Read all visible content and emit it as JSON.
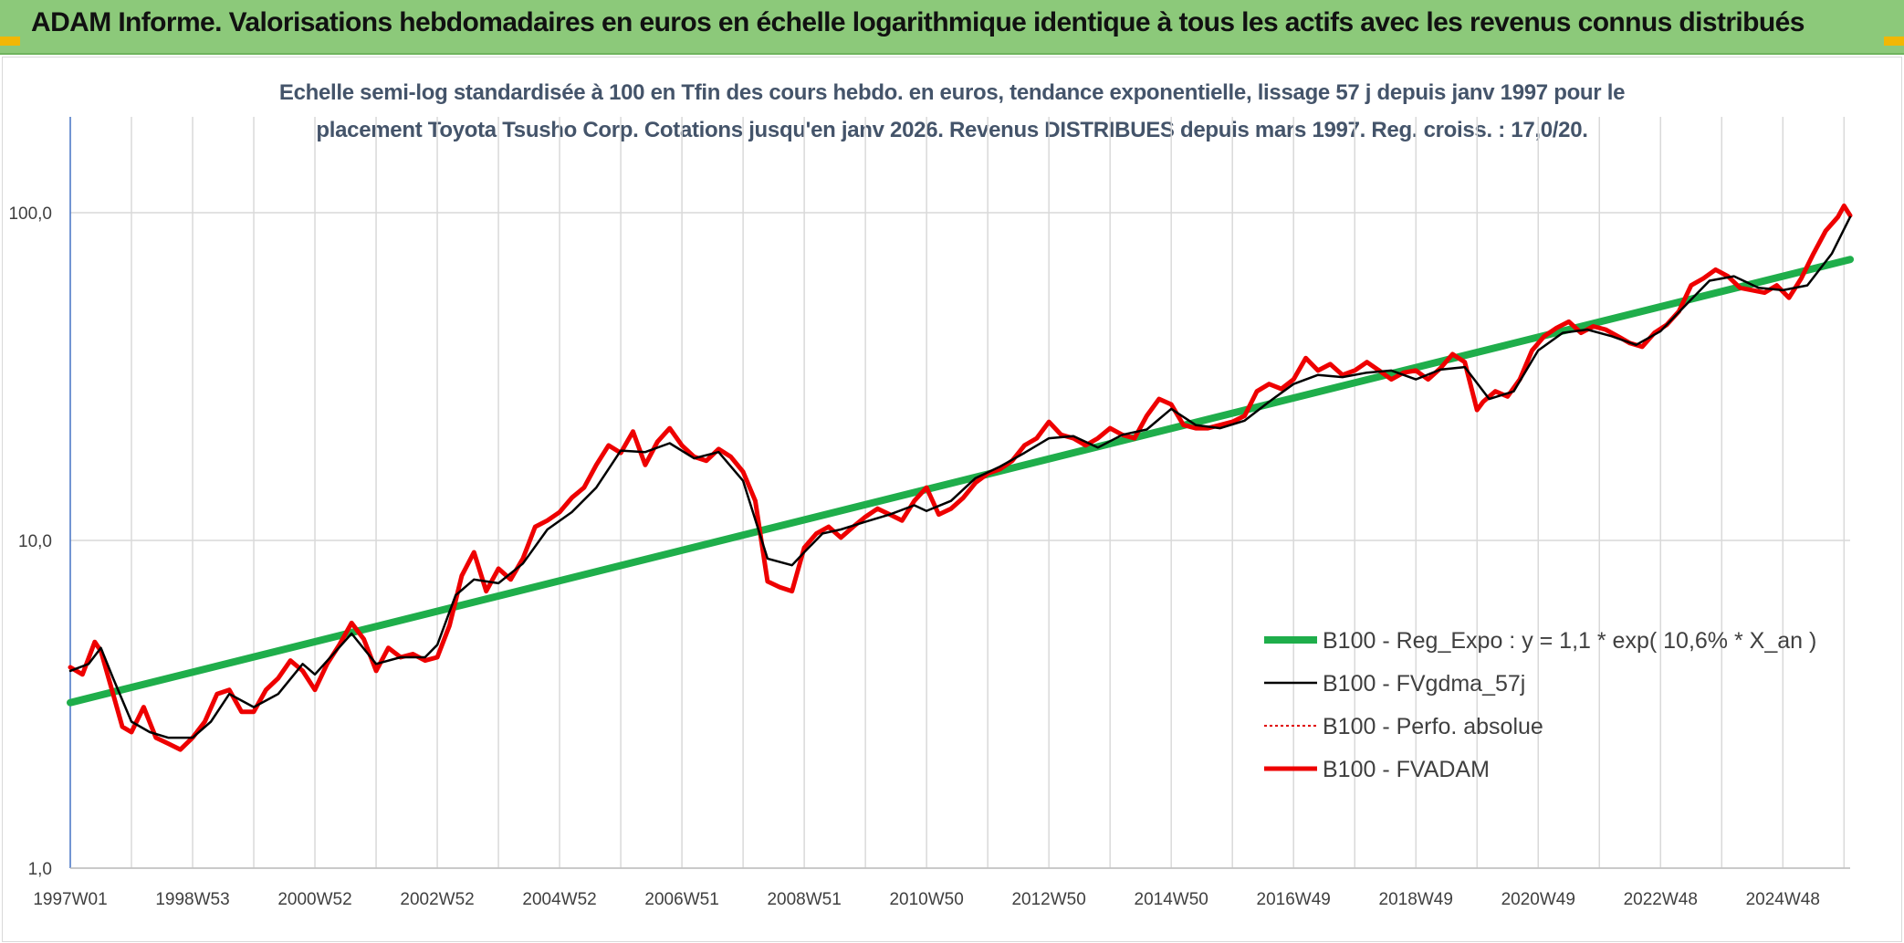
{
  "header": {
    "title": "ADAM Informe. Valorisations hebdomadaires en euros en échelle logarithmique identique à tous les actifs avec les revenus connus distribués"
  },
  "colors": {
    "header_bg": "#8cc97a",
    "regression": "#1fae4b",
    "smoothed": "#000000",
    "perf_absolue": "#e00000",
    "fvadam": "#ee0000",
    "grid": "#d9d9d9"
  },
  "chart_data": {
    "type": "line",
    "subtitle_line1": "Echelle semi-log standardisée à 100 en Tfin des cours hebdo. en euros, tendance exponentielle, lissage 57 j depuis janv 1997 pour le",
    "subtitle_line2": "placement Toyota Tsusho Corp. Cotations jusqu'en janv 2026. Revenus DISTRIBUES depuis mars 1997. Reg. croiss. : 17,0/20.",
    "y_scale": "log",
    "ylim": [
      1,
      180
    ],
    "y_ticks": [
      {
        "value": 1,
        "label": "1,0"
      },
      {
        "value": 10,
        "label": "10,0"
      },
      {
        "value": 100,
        "label": "100,0"
      }
    ],
    "xlim": [
      1997.0,
      2026.1
    ],
    "x_ticks": [
      {
        "value": 1997.0,
        "label": "1997W01"
      },
      {
        "value": 1999.0,
        "label": "1998W53"
      },
      {
        "value": 2001.0,
        "label": "2000W52"
      },
      {
        "value": 2003.0,
        "label": "2002W52"
      },
      {
        "value": 2005.0,
        "label": "2004W52"
      },
      {
        "value": 2007.0,
        "label": "2006W51"
      },
      {
        "value": 2009.0,
        "label": "2008W51"
      },
      {
        "value": 2011.0,
        "label": "2010W50"
      },
      {
        "value": 2013.0,
        "label": "2012W50"
      },
      {
        "value": 2015.0,
        "label": "2014W50"
      },
      {
        "value": 2017.0,
        "label": "2016W49"
      },
      {
        "value": 2019.0,
        "label": "2018W49"
      },
      {
        "value": 2021.0,
        "label": "2020W49"
      },
      {
        "value": 2023.0,
        "label": "2022W48"
      },
      {
        "value": 2025.0,
        "label": "2024W48"
      }
    ],
    "minor_gridlines_x": [
      1998.0,
      2000.0,
      2002.0,
      2004.0,
      2006.0,
      2008.0,
      2010.0,
      2012.0,
      2014.0,
      2016.0,
      2018.0,
      2020.0,
      2022.0,
      2024.0,
      2026.0
    ],
    "grid": true,
    "legend_position": "bottom-right",
    "series": [
      {
        "name": "B100 - Reg_Expo : y = 1,1 * exp( 10,6% *  X_an )",
        "style": "thick-green",
        "x": [
          1997.0,
          2026.1
        ],
        "y": [
          3.2,
          72.0
        ]
      },
      {
        "name": "B100 - FVgdma_57j",
        "style": "thin-black",
        "x": [
          1997.0,
          1997.3,
          1997.5,
          1997.7,
          1998.0,
          1998.3,
          1998.6,
          1999.0,
          1999.3,
          1999.6,
          2000.0,
          2000.4,
          2000.8,
          2001.0,
          2001.3,
          2001.6,
          2002.0,
          2002.4,
          2002.8,
          2003.0,
          2003.3,
          2003.6,
          2004.0,
          2004.4,
          2004.8,
          2005.2,
          2005.6,
          2006.0,
          2006.4,
          2006.8,
          2007.2,
          2007.6,
          2008.0,
          2008.4,
          2008.8,
          2009.0,
          2009.3,
          2009.6,
          2010.0,
          2010.4,
          2010.8,
          2011.0,
          2011.4,
          2011.8,
          2012.2,
          2012.6,
          2013.0,
          2013.4,
          2013.8,
          2014.2,
          2014.6,
          2015.0,
          2015.4,
          2015.8,
          2016.2,
          2016.6,
          2017.0,
          2017.4,
          2017.8,
          2018.2,
          2018.6,
          2019.0,
          2019.4,
          2019.8,
          2020.2,
          2020.6,
          2021.0,
          2021.4,
          2021.8,
          2022.2,
          2022.6,
          2023.0,
          2023.4,
          2023.8,
          2024.2,
          2024.6,
          2025.0,
          2025.4,
          2025.8,
          2026.1
        ],
        "y": [
          4.0,
          4.2,
          4.7,
          3.8,
          2.8,
          2.6,
          2.5,
          2.5,
          2.8,
          3.4,
          3.1,
          3.4,
          4.2,
          3.9,
          4.5,
          5.2,
          4.2,
          4.4,
          4.4,
          4.8,
          6.8,
          7.6,
          7.4,
          8.5,
          10.8,
          12.2,
          14.5,
          18.8,
          18.6,
          19.8,
          17.8,
          18.6,
          15.2,
          8.8,
          8.4,
          9.2,
          10.5,
          10.8,
          11.4,
          12.0,
          12.8,
          12.3,
          13.2,
          15.5,
          16.8,
          18.5,
          20.5,
          20.8,
          19.2,
          21.0,
          21.8,
          25.2,
          22.5,
          22.0,
          23.2,
          26.5,
          30.0,
          32.0,
          31.5,
          32.5,
          33.0,
          31.0,
          33.2,
          33.8,
          27.0,
          28.5,
          38.0,
          43.0,
          44.0,
          42.0,
          39.5,
          43.5,
          52.0,
          62.0,
          64.0,
          59.0,
          58.0,
          60.0,
          75.0,
          97.0
        ]
      },
      {
        "name": "B100 - Perfo. absolue",
        "style": "dotted-red",
        "x": [],
        "y": []
      },
      {
        "name": "B100 - FVADAM",
        "style": "thick-red",
        "x": [
          1997.0,
          1997.2,
          1997.4,
          1997.5,
          1997.7,
          1997.85,
          1998.0,
          1998.2,
          1998.4,
          1998.6,
          1998.8,
          1999.0,
          1999.2,
          1999.4,
          1999.6,
          1999.8,
          2000.0,
          2000.2,
          2000.4,
          2000.6,
          2000.8,
          2001.0,
          2001.2,
          2001.4,
          2001.6,
          2001.8,
          2002.0,
          2002.2,
          2002.4,
          2002.6,
          2002.8,
          2003.0,
          2003.2,
          2003.4,
          2003.6,
          2003.8,
          2004.0,
          2004.2,
          2004.4,
          2004.6,
          2004.8,
          2005.0,
          2005.2,
          2005.4,
          2005.6,
          2005.8,
          2006.0,
          2006.2,
          2006.4,
          2006.6,
          2006.8,
          2007.0,
          2007.2,
          2007.4,
          2007.6,
          2007.8,
          2008.0,
          2008.2,
          2008.4,
          2008.6,
          2008.8,
          2009.0,
          2009.2,
          2009.4,
          2009.6,
          2009.8,
          2010.0,
          2010.2,
          2010.4,
          2010.6,
          2010.8,
          2011.0,
          2011.2,
          2011.4,
          2011.6,
          2011.8,
          2012.0,
          2012.2,
          2012.4,
          2012.6,
          2012.8,
          2013.0,
          2013.2,
          2013.4,
          2013.6,
          2013.8,
          2014.0,
          2014.2,
          2014.4,
          2014.6,
          2014.8,
          2015.0,
          2015.2,
          2015.4,
          2015.6,
          2015.8,
          2016.0,
          2016.2,
          2016.4,
          2016.6,
          2016.8,
          2017.0,
          2017.2,
          2017.4,
          2017.6,
          2017.8,
          2018.0,
          2018.2,
          2018.4,
          2018.6,
          2018.8,
          2019.0,
          2019.2,
          2019.4,
          2019.6,
          2019.8,
          2020.0,
          2020.1,
          2020.3,
          2020.5,
          2020.7,
          2020.9,
          2021.1,
          2021.3,
          2021.5,
          2021.7,
          2021.9,
          2022.1,
          2022.3,
          2022.5,
          2022.7,
          2022.9,
          2023.1,
          2023.3,
          2023.5,
          2023.7,
          2023.9,
          2024.1,
          2024.3,
          2024.5,
          2024.7,
          2024.9,
          2025.1,
          2025.3,
          2025.5,
          2025.7,
          2025.9,
          2026.0,
          2026.1
        ],
        "y": [
          4.1,
          3.9,
          4.9,
          4.6,
          3.4,
          2.7,
          2.6,
          3.1,
          2.5,
          2.4,
          2.3,
          2.5,
          2.8,
          3.4,
          3.5,
          3.0,
          3.0,
          3.5,
          3.8,
          4.3,
          4.0,
          3.5,
          4.2,
          4.8,
          5.6,
          5.0,
          4.0,
          4.7,
          4.4,
          4.5,
          4.3,
          4.4,
          5.5,
          7.8,
          9.2,
          7.0,
          8.2,
          7.6,
          8.8,
          11.0,
          11.5,
          12.2,
          13.5,
          14.5,
          17.0,
          19.5,
          18.5,
          21.5,
          17.0,
          20.0,
          22.0,
          19.5,
          18.0,
          17.5,
          19.0,
          18.0,
          16.2,
          13.2,
          7.5,
          7.2,
          7.0,
          9.5,
          10.5,
          11.0,
          10.2,
          11.0,
          11.8,
          12.5,
          12.0,
          11.5,
          13.2,
          14.5,
          12.0,
          12.5,
          13.5,
          15.0,
          16.0,
          16.5,
          17.5,
          19.5,
          20.5,
          23.0,
          21.0,
          20.5,
          19.5,
          20.5,
          22.0,
          21.0,
          20.5,
          24.0,
          27.0,
          26.0,
          22.5,
          22.0,
          22.0,
          22.5,
          23.0,
          24.0,
          28.5,
          30.0,
          29.0,
          31.0,
          36.0,
          33.0,
          34.5,
          32.0,
          33.0,
          35.0,
          33.0,
          31.0,
          32.5,
          33.0,
          31.0,
          33.5,
          37.0,
          35.0,
          25.0,
          26.5,
          28.5,
          27.5,
          31.0,
          38.0,
          42.0,
          44.5,
          46.5,
          43.0,
          45.0,
          44.0,
          42.0,
          40.0,
          39.0,
          43.0,
          45.5,
          50.0,
          60.0,
          63.0,
          67.0,
          64.0,
          59.0,
          58.0,
          57.0,
          60.0,
          55.0,
          63.0,
          75.0,
          88.0,
          97.0,
          105.0,
          98.0
        ]
      }
    ]
  }
}
